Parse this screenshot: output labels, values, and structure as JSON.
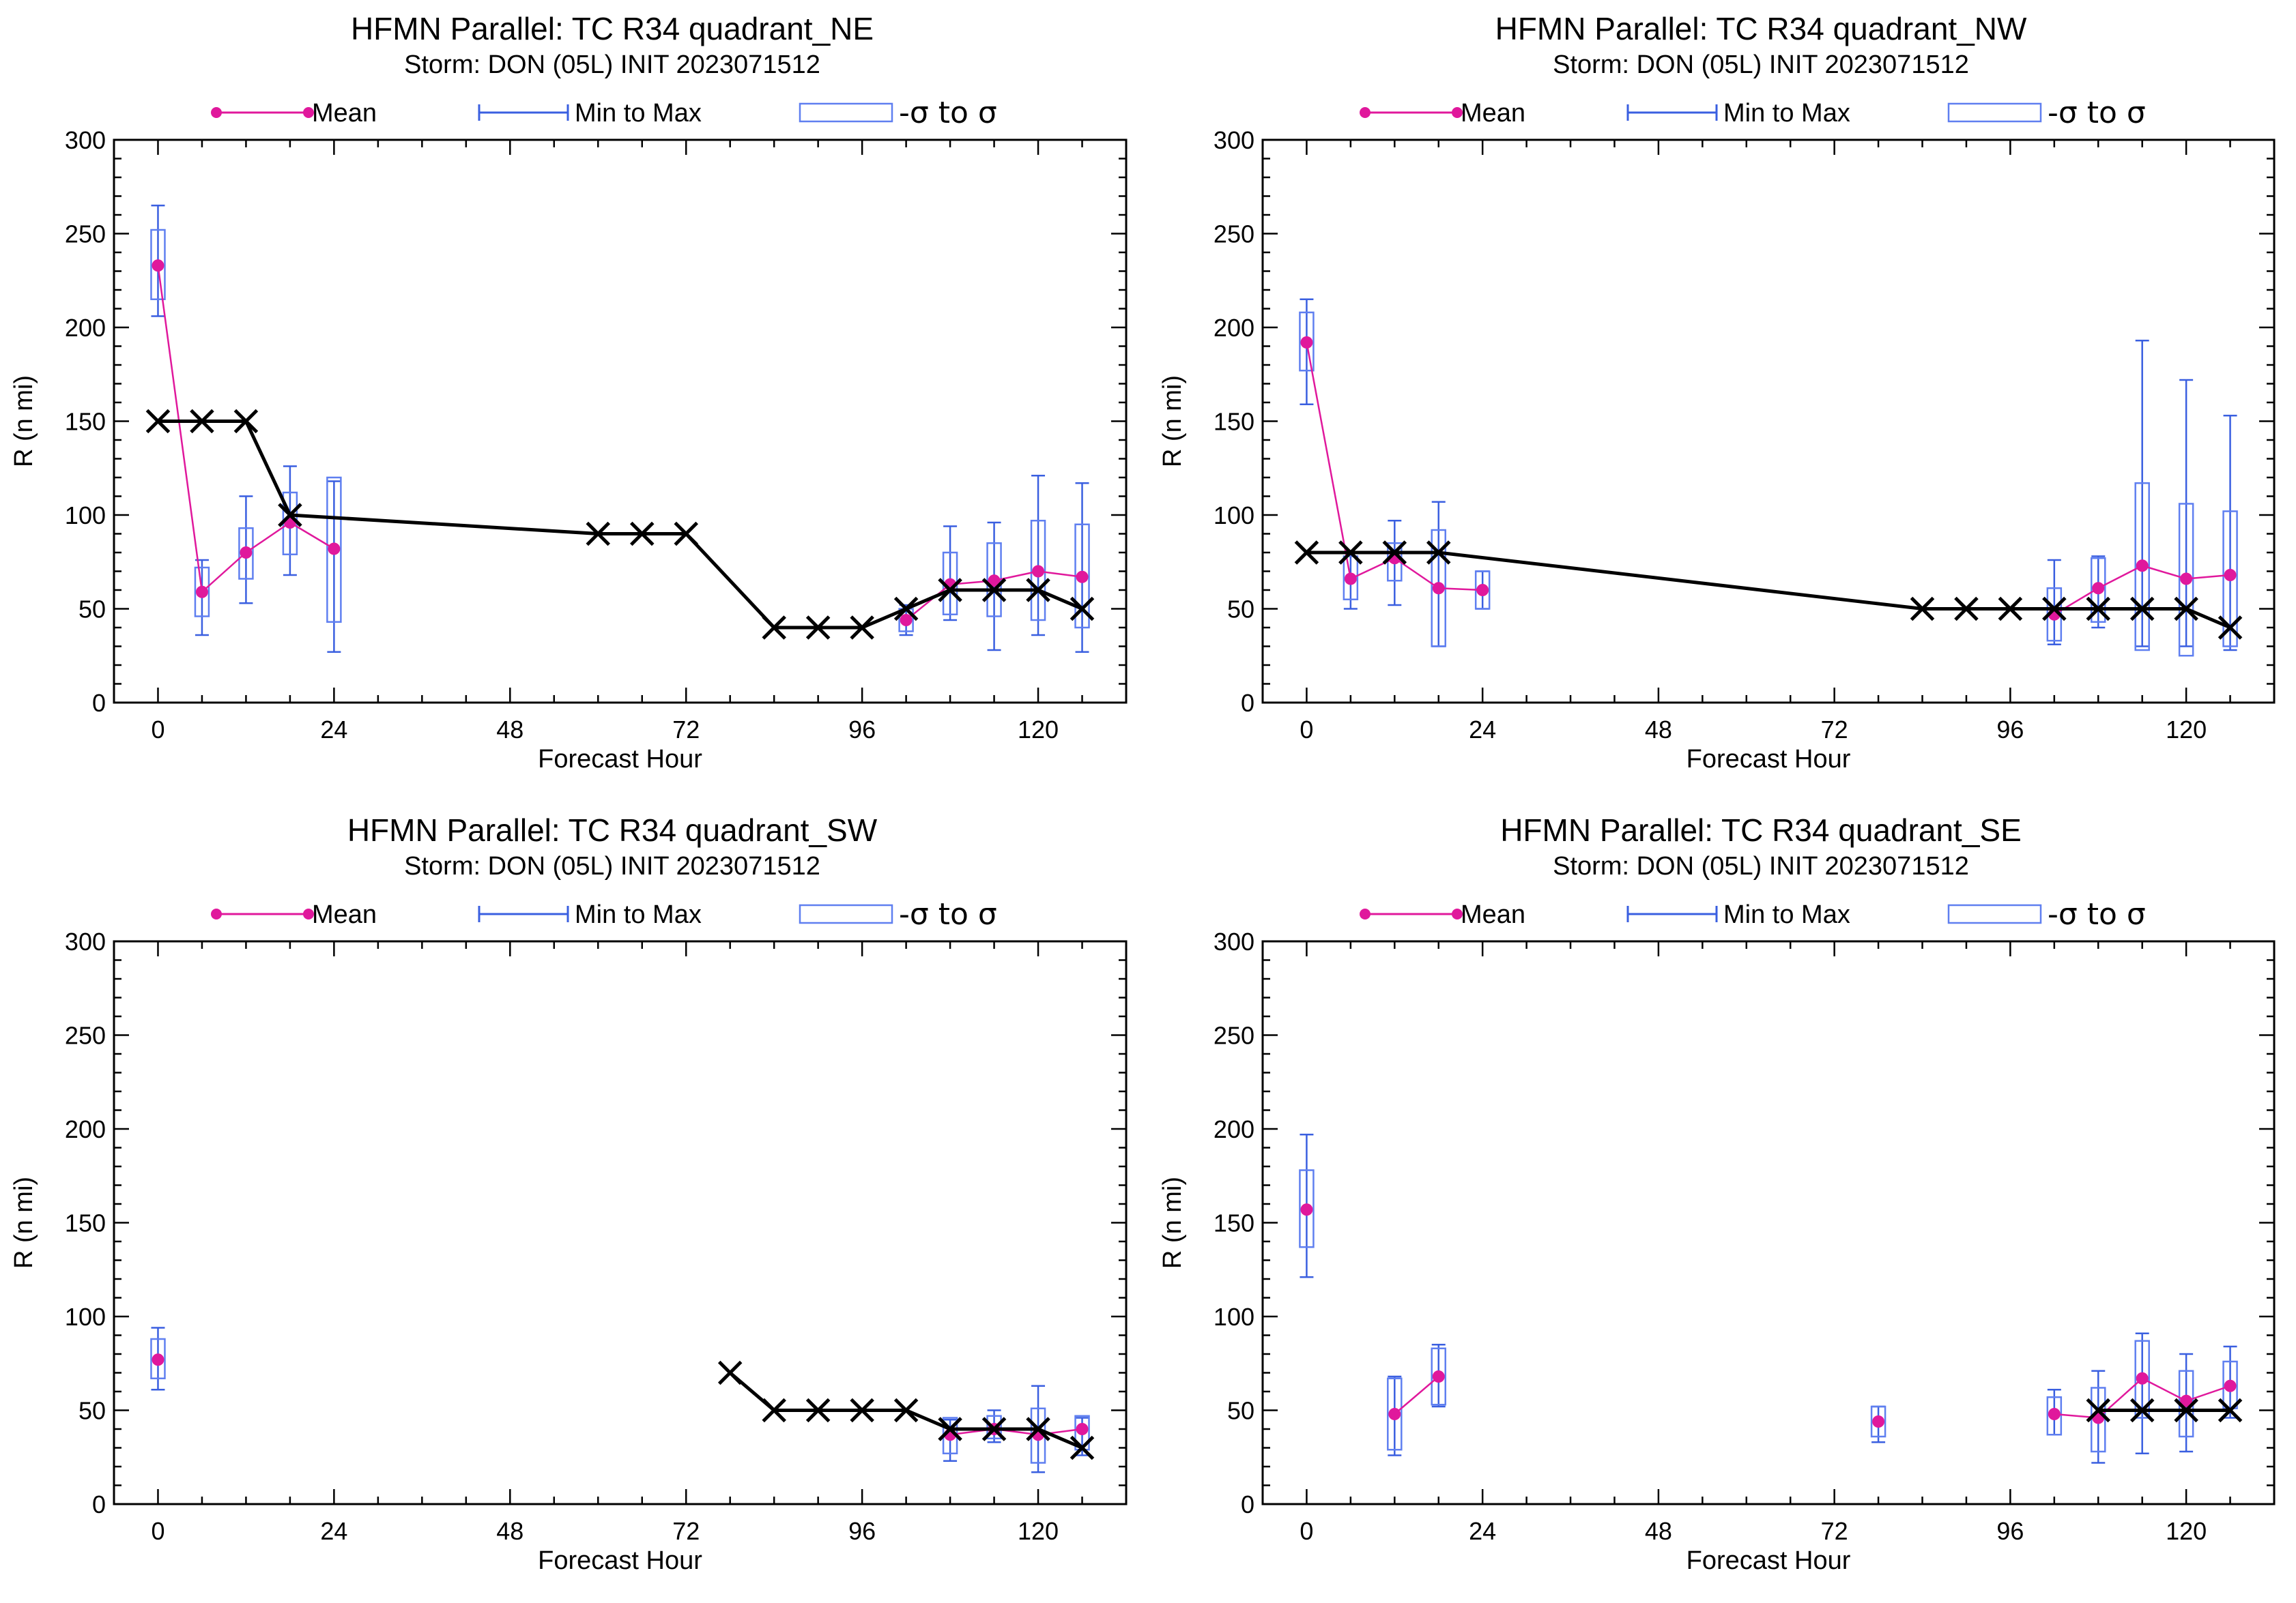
{
  "colors": {
    "mean": "#e0189c",
    "range": "#3a5fe0",
    "sigma_box": "#5f7ff0",
    "best_track": "#000000"
  },
  "legend": {
    "mean": "Mean",
    "minmax": "Min to Max",
    "sigma": "-σ to σ"
  },
  "chart_data": [
    {
      "type": "box",
      "title": "HFMN Parallel: TC  R34 quadrant_NE",
      "subtitle": "Storm: DON (05L) INIT 2023071512",
      "xlabel": "Forecast Hour",
      "ylabel": "R (n mi)",
      "xlim": [
        -6,
        132
      ],
      "ylim": [
        0,
        300
      ],
      "xticks": [
        0,
        24,
        48,
        72,
        96,
        120
      ],
      "yticks": [
        0,
        50,
        100,
        150,
        200,
        250,
        300
      ],
      "ensemble": [
        {
          "x": 0,
          "mean": 233,
          "min": 206,
          "max": 265,
          "lo": 215,
          "hi": 252
        },
        {
          "x": 6,
          "mean": 59,
          "min": 36,
          "max": 76,
          "lo": 46,
          "hi": 72
        },
        {
          "x": 12,
          "mean": 80,
          "min": 53,
          "max": 110,
          "lo": 66,
          "hi": 93
        },
        {
          "x": 18,
          "mean": 96,
          "min": 68,
          "max": 126,
          "lo": 79,
          "hi": 112
        },
        {
          "x": 24,
          "mean": 82,
          "min": 27,
          "max": 118,
          "lo": 43,
          "hi": 120
        },
        {
          "x": 102,
          "mean": 44,
          "min": 36,
          "max": 52,
          "lo": 38,
          "hi": 50
        },
        {
          "x": 108,
          "mean": 63,
          "min": 44,
          "max": 94,
          "lo": 47,
          "hi": 80
        },
        {
          "x": 114,
          "mean": 65,
          "min": 28,
          "max": 96,
          "lo": 46,
          "hi": 85
        },
        {
          "x": 120,
          "mean": 70,
          "min": 36,
          "max": 121,
          "lo": 44,
          "hi": 97
        },
        {
          "x": 126,
          "mean": 67,
          "min": 27,
          "max": 117,
          "lo": 40,
          "hi": 95
        }
      ],
      "best_track": [
        {
          "x": 0,
          "y": 150
        },
        {
          "x": 6,
          "y": 150
        },
        {
          "x": 12,
          "y": 150
        },
        {
          "x": 18,
          "y": 100
        },
        {
          "x": 60,
          "y": 90
        },
        {
          "x": 66,
          "y": 90
        },
        {
          "x": 72,
          "y": 90
        },
        {
          "x": 84,
          "y": 40
        },
        {
          "x": 90,
          "y": 40
        },
        {
          "x": 96,
          "y": 40
        },
        {
          "x": 102,
          "y": 50
        },
        {
          "x": 108,
          "y": 60
        },
        {
          "x": 114,
          "y": 60
        },
        {
          "x": 120,
          "y": 60
        },
        {
          "x": 126,
          "y": 50
        }
      ]
    },
    {
      "type": "box",
      "title": "HFMN Parallel: TC  R34 quadrant_NW",
      "subtitle": "Storm: DON (05L) INIT 2023071512",
      "xlabel": "Forecast Hour",
      "ylabel": "R (n mi)",
      "xlim": [
        -6,
        132
      ],
      "ylim": [
        0,
        300
      ],
      "xticks": [
        0,
        24,
        48,
        72,
        96,
        120
      ],
      "yticks": [
        0,
        50,
        100,
        150,
        200,
        250,
        300
      ],
      "ensemble": [
        {
          "x": 0,
          "mean": 192,
          "min": 159,
          "max": 215,
          "lo": 177,
          "hi": 208
        },
        {
          "x": 6,
          "mean": 66,
          "min": 50,
          "max": 80,
          "lo": 55,
          "hi": 78
        },
        {
          "x": 12,
          "mean": 77,
          "min": 52,
          "max": 97,
          "lo": 65,
          "hi": 85
        },
        {
          "x": 18,
          "mean": 61,
          "min": 30,
          "max": 107,
          "lo": 30,
          "hi": 92
        },
        {
          "x": 24,
          "mean": 60,
          "min": 50,
          "max": 70,
          "lo": 50,
          "hi": 70
        },
        {
          "x": 102,
          "mean": 47,
          "min": 31,
          "max": 76,
          "lo": 33,
          "hi": 61
        },
        {
          "x": 108,
          "mean": 61,
          "min": 40,
          "max": 78,
          "lo": 43,
          "hi": 77
        },
        {
          "x": 114,
          "mean": 73,
          "min": 30,
          "max": 193,
          "lo": 28,
          "hi": 117
        },
        {
          "x": 120,
          "mean": 66,
          "min": 30,
          "max": 172,
          "lo": 25,
          "hi": 106
        },
        {
          "x": 126,
          "mean": 68,
          "min": 28,
          "max": 153,
          "lo": 30,
          "hi": 102
        }
      ],
      "best_track": [
        {
          "x": 0,
          "y": 80
        },
        {
          "x": 6,
          "y": 80
        },
        {
          "x": 12,
          "y": 80
        },
        {
          "x": 18,
          "y": 80
        },
        {
          "x": 84,
          "y": 50
        },
        {
          "x": 90,
          "y": 50
        },
        {
          "x": 96,
          "y": 50
        },
        {
          "x": 102,
          "y": 50
        },
        {
          "x": 108,
          "y": 50
        },
        {
          "x": 114,
          "y": 50
        },
        {
          "x": 120,
          "y": 50
        },
        {
          "x": 126,
          "y": 40
        }
      ]
    },
    {
      "type": "box",
      "title": "HFMN Parallel: TC  R34 quadrant_SW",
      "subtitle": "Storm: DON (05L) INIT 2023071512",
      "xlabel": "Forecast Hour",
      "ylabel": "R (n mi)",
      "xlim": [
        -6,
        132
      ],
      "ylim": [
        0,
        300
      ],
      "xticks": [
        0,
        24,
        48,
        72,
        96,
        120
      ],
      "yticks": [
        0,
        50,
        100,
        150,
        200,
        250,
        300
      ],
      "ensemble": [
        {
          "x": 0,
          "mean": 77,
          "min": 61,
          "max": 94,
          "lo": 67,
          "hi": 88
        },
        {
          "x": 108,
          "mean": 37,
          "min": 23,
          "max": 45,
          "lo": 27,
          "hi": 46
        },
        {
          "x": 114,
          "mean": 40,
          "min": 33,
          "max": 50,
          "lo": 35,
          "hi": 47
        },
        {
          "x": 120,
          "mean": 37,
          "min": 17,
          "max": 63,
          "lo": 22,
          "hi": 51
        },
        {
          "x": 126,
          "mean": 40,
          "min": 26,
          "max": 46,
          "lo": 29,
          "hi": 47
        }
      ],
      "best_track": [
        {
          "x": 78,
          "y": 70
        },
        {
          "x": 84,
          "y": 50
        },
        {
          "x": 90,
          "y": 50
        },
        {
          "x": 96,
          "y": 50
        },
        {
          "x": 102,
          "y": 50
        },
        {
          "x": 108,
          "y": 40
        },
        {
          "x": 114,
          "y": 40
        },
        {
          "x": 120,
          "y": 40
        },
        {
          "x": 126,
          "y": 30
        }
      ]
    },
    {
      "type": "box",
      "title": "HFMN Parallel: TC  R34 quadrant_SE",
      "subtitle": "Storm: DON (05L) INIT 2023071512",
      "xlabel": "Forecast Hour",
      "ylabel": "R (n mi)",
      "xlim": [
        -6,
        132
      ],
      "ylim": [
        0,
        300
      ],
      "xticks": [
        0,
        24,
        48,
        72,
        96,
        120
      ],
      "yticks": [
        0,
        50,
        100,
        150,
        200,
        250,
        300
      ],
      "ensemble": [
        {
          "x": 0,
          "mean": 157,
          "min": 121,
          "max": 197,
          "lo": 137,
          "hi": 178
        },
        {
          "x": 12,
          "mean": 48,
          "min": 26,
          "max": 68,
          "lo": 29,
          "hi": 67
        },
        {
          "x": 18,
          "mean": 68,
          "min": 52,
          "max": 85,
          "lo": 53,
          "hi": 83
        },
        {
          "x": 78,
          "mean": 44,
          "min": 33,
          "max": 52,
          "lo": 36,
          "hi": 52
        },
        {
          "x": 102,
          "mean": 48,
          "min": 37,
          "max": 61,
          "lo": 37,
          "hi": 57
        },
        {
          "x": 108,
          "mean": 46,
          "min": 22,
          "max": 71,
          "lo": 28,
          "hi": 62
        },
        {
          "x": 114,
          "mean": 67,
          "min": 27,
          "max": 91,
          "lo": 46,
          "hi": 87
        },
        {
          "x": 120,
          "mean": 55,
          "min": 28,
          "max": 80,
          "lo": 36,
          "hi": 71
        },
        {
          "x": 126,
          "mean": 63,
          "min": 46,
          "max": 84,
          "lo": 51,
          "hi": 76
        }
      ],
      "best_track": [
        {
          "x": 108,
          "y": 50
        },
        {
          "x": 114,
          "y": 50
        },
        {
          "x": 120,
          "y": 50
        },
        {
          "x": 126,
          "y": 50
        }
      ]
    }
  ]
}
